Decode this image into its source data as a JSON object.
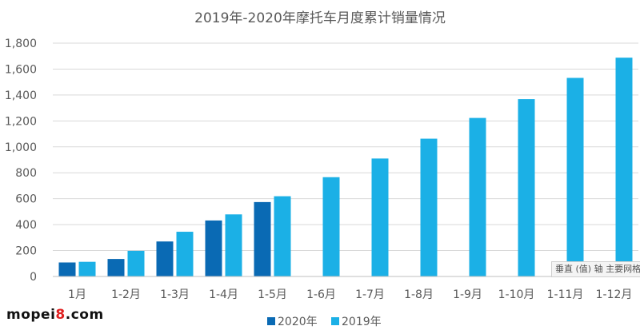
{
  "chart_data": {
    "type": "bar",
    "title": "2019年-2020年摩托车月度累计销量情况",
    "categories": [
      "1月",
      "1-2月",
      "1-3月",
      "1-4月",
      "1-5月",
      "1-6月",
      "1-7月",
      "1-8月",
      "1-9月",
      "1-10月",
      "1-11月",
      "1-12月"
    ],
    "series": [
      {
        "name": "2020年",
        "color": "#0a6ab4",
        "values": [
          108,
          135,
          270,
          432,
          574,
          null,
          null,
          null,
          null,
          null,
          null,
          null
        ]
      },
      {
        "name": "2019年",
        "color": "#1bb0e6",
        "values": [
          113,
          198,
          345,
          479,
          619,
          766,
          910,
          1063,
          1223,
          1368,
          1532,
          1688
        ]
      }
    ],
    "ylim": [
      0,
      1800
    ],
    "yticks": [
      "0",
      "200",
      "400",
      "600",
      "800",
      "1,000",
      "1,200",
      "1,400",
      "1,600",
      "1,800"
    ],
    "xlabel": "",
    "ylabel": "",
    "grid": true,
    "legend": "bottom"
  },
  "watermark": {
    "prefix": "mopei",
    "accent": "8",
    "suffix": ".com"
  },
  "axis_hint": "垂直 (值) 轴 主要网格线"
}
